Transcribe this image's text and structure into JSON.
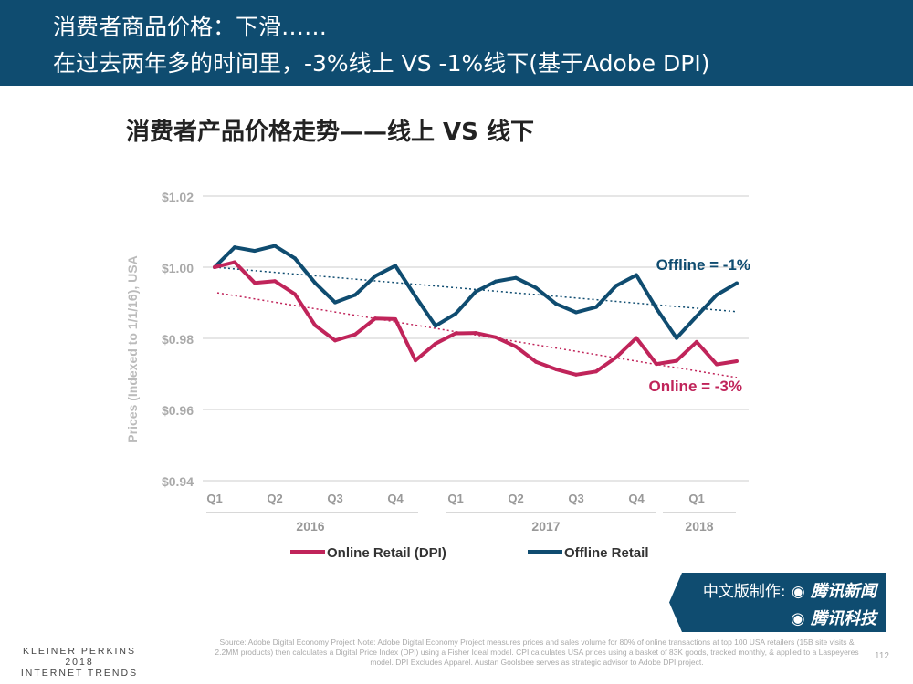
{
  "header": {
    "line1": "消费者商品价格：下滑……",
    "line2": "在过去两年多的时间里，-3%线上 VS  -1%线下(基于Adobe DPI)"
  },
  "chart_data": {
    "type": "line",
    "title": "消费者产品价格走势——线上 VS 线下",
    "ylabel": "Prices (Indexed to 1/1/16), USA",
    "ylim": [
      0.94,
      1.02
    ],
    "yticks": [
      "$1.02",
      "$1.00",
      "$0.98",
      "$0.96",
      "$0.94"
    ],
    "ytick_values": [
      1.02,
      1.0,
      0.98,
      0.96,
      0.94
    ],
    "xticks": [
      "Q1",
      "Q2",
      "Q3",
      "Q4",
      "Q1",
      "Q2",
      "Q3",
      "Q4",
      "Q1"
    ],
    "years": [
      "2016",
      "2017",
      "2018"
    ],
    "grid": true,
    "legend_placement": "bottom",
    "series": [
      {
        "name": "Online Retail (DPI)",
        "color": "#c0245a",
        "values": [
          1.0,
          1.0014,
          0.9956,
          0.9961,
          0.9924,
          0.9837,
          0.9794,
          0.9811,
          0.9856,
          0.9854,
          0.9738,
          0.9785,
          0.9814,
          0.9815,
          0.9803,
          0.9777,
          0.9734,
          0.9713,
          0.9698,
          0.9707,
          0.9747,
          0.9801,
          0.9728,
          0.9737,
          0.979,
          0.9727,
          0.9736
        ],
        "trend": [
          0.9928,
          0.969
        ],
        "annotation": "Online = -3%"
      },
      {
        "name": "Offline Retail",
        "color": "#0f4c70",
        "values": [
          1.0,
          1.0056,
          1.0046,
          1.006,
          1.0025,
          0.9956,
          0.9901,
          0.9922,
          0.9975,
          1.0004,
          0.9918,
          0.9835,
          0.9869,
          0.9931,
          0.996,
          0.997,
          0.9942,
          0.9897,
          0.9873,
          0.9888,
          0.9948,
          0.9978,
          0.9884,
          0.9801,
          0.9862,
          0.9922,
          0.9955
        ],
        "trend": [
          1.0,
          0.9875
        ],
        "annotation": "Offline = -1%"
      }
    ]
  },
  "source": "Source: Adobe Digital Economy Project  Note: Adobe Digital Economy Project measures prices and sales volume for 80% of online transactions at top 100 USA retailers (15B site visits & 2.2MM products) then calculates a Digital Price Index (DPI) using a Fisher Ideal model.  CPI calculates USA prices using a basket of 83K goods, tracked monthly, & applied to a Laspeyeres model. DPI Excludes Apparel. Austan Goolsbee serves as strategic advisor to Adobe DPI project.",
  "footer": {
    "line1": "KLEINER PERKINS",
    "line2": "2018",
    "line3": "INTERNET TRENDS",
    "page": "112"
  },
  "badge": {
    "prefix": "中文版制作:",
    "brand1": "腾讯新闻",
    "brand2": "腾讯科技"
  }
}
